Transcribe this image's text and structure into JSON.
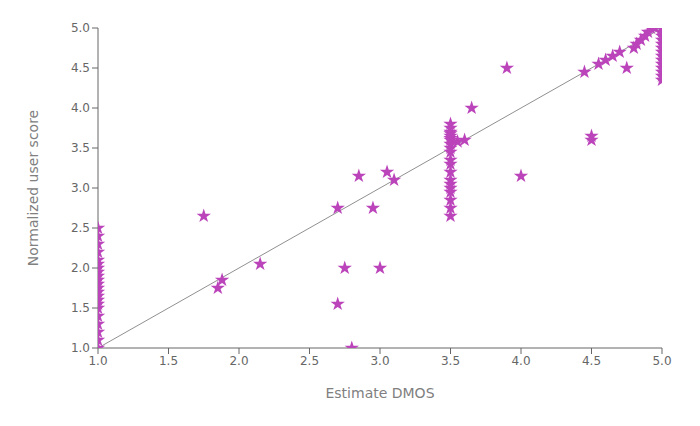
{
  "chart_data": {
    "type": "scatter",
    "xlabel": "Estimate DMOS",
    "ylabel": "Normalized user score",
    "xlim": [
      1.0,
      5.0
    ],
    "ylim": [
      1.0,
      5.0
    ],
    "xticks": [
      {
        "value": 1.0,
        "label": "1.0"
      },
      1.5,
      {
        "value": 2.0,
        "label": "2.0"
      },
      2.5,
      {
        "value": 3.0,
        "label": "3.0"
      },
      3.5,
      {
        "value": 4.0,
        "label": "4.0"
      },
      4.5,
      {
        "value": 5.0,
        "label": "5.0"
      }
    ],
    "yticks": [
      {
        "value": 1.0,
        "label": "1.0"
      },
      1.5,
      {
        "value": 2.0,
        "label": "2.0"
      },
      2.5,
      {
        "value": 3.0,
        "label": "3.0"
      },
      3.5,
      {
        "value": 4.0,
        "label": "4.0"
      },
      4.5,
      {
        "value": 5.0,
        "label": "5.0"
      }
    ],
    "grid": false,
    "series": [
      {
        "type": "line",
        "color": "#909090",
        "x": [
          1.0,
          5.0
        ],
        "values": [
          1.0,
          5.0
        ]
      },
      {
        "type": "scatter",
        "marker": "star",
        "color": "#BB44BB",
        "x": [
          1.0,
          1.0,
          1.0,
          1.0,
          1.0,
          1.0,
          1.0,
          1.0,
          1.0,
          1.0,
          1.0,
          1.0,
          1.0,
          1.0,
          1.0,
          1.0,
          1.0,
          1.0,
          1.0,
          1.0,
          1.0,
          1.0,
          1.75,
          1.85,
          1.88,
          2.15,
          2.7,
          2.7,
          2.75,
          2.8,
          2.85,
          2.95,
          3.0,
          3.05,
          3.1,
          3.5,
          3.5,
          3.5,
          3.5,
          3.5,
          3.5,
          3.5,
          3.5,
          3.5,
          3.5,
          3.5,
          3.5,
          3.5,
          3.5,
          3.5,
          3.5,
          3.5,
          3.5,
          3.5,
          3.5,
          3.55,
          3.6,
          3.65,
          3.9,
          4.0,
          4.45,
          4.5,
          4.5,
          4.55,
          4.6,
          4.65,
          4.7,
          4.75,
          4.8,
          4.82,
          4.85,
          4.88,
          4.9,
          4.92,
          4.95,
          5.0,
          5.0,
          5.0,
          5.0,
          5.0,
          5.0,
          5.0,
          5.0,
          5.0,
          5.0,
          5.0,
          5.0,
          5.0,
          5.0,
          5.0,
          5.0,
          5.0,
          5.0
        ],
        "values": [
          1.0,
          1.1,
          1.2,
          1.3,
          1.4,
          1.5,
          1.55,
          1.6,
          1.65,
          1.7,
          1.75,
          1.8,
          1.85,
          1.9,
          1.95,
          2.0,
          2.05,
          2.1,
          2.2,
          2.3,
          2.4,
          2.5,
          2.65,
          1.75,
          1.85,
          2.05,
          2.75,
          1.55,
          2.0,
          1.0,
          3.15,
          2.75,
          2.0,
          3.2,
          3.1,
          3.6,
          3.62,
          3.65,
          3.68,
          3.7,
          3.55,
          3.5,
          3.45,
          3.35,
          3.3,
          3.2,
          3.1,
          3.05,
          3.0,
          2.95,
          2.85,
          2.75,
          2.65,
          3.75,
          3.8,
          3.58,
          3.6,
          4.0,
          4.5,
          3.15,
          4.45,
          3.6,
          3.65,
          4.55,
          4.6,
          4.65,
          4.7,
          4.5,
          4.75,
          4.8,
          4.85,
          4.9,
          4.95,
          5.0,
          5.0,
          5.0,
          5.0,
          5.0,
          5.0,
          5.0,
          4.95,
          4.9,
          4.85,
          4.8,
          4.75,
          4.7,
          4.65,
          4.6,
          4.55,
          4.5,
          4.45,
          4.4,
          4.35
        ]
      }
    ]
  }
}
